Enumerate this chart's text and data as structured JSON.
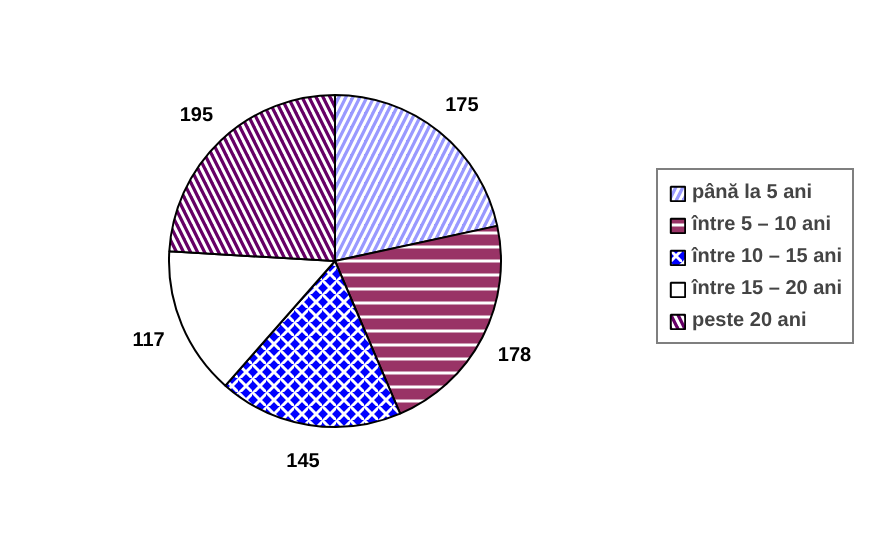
{
  "chart_data": {
    "type": "pie",
    "categories": [
      "până la 5 ani",
      "între 5 – 10 ani",
      "între 10 – 15 ani",
      "între 15 – 20 ani",
      "peste 20 ani"
    ],
    "values": [
      175,
      178,
      145,
      117,
      195
    ],
    "colors": [
      "#9999ff",
      "#993366",
      "#0000ff",
      "#ffffff",
      "#660066"
    ],
    "data_labels": true,
    "legend": "right"
  }
}
